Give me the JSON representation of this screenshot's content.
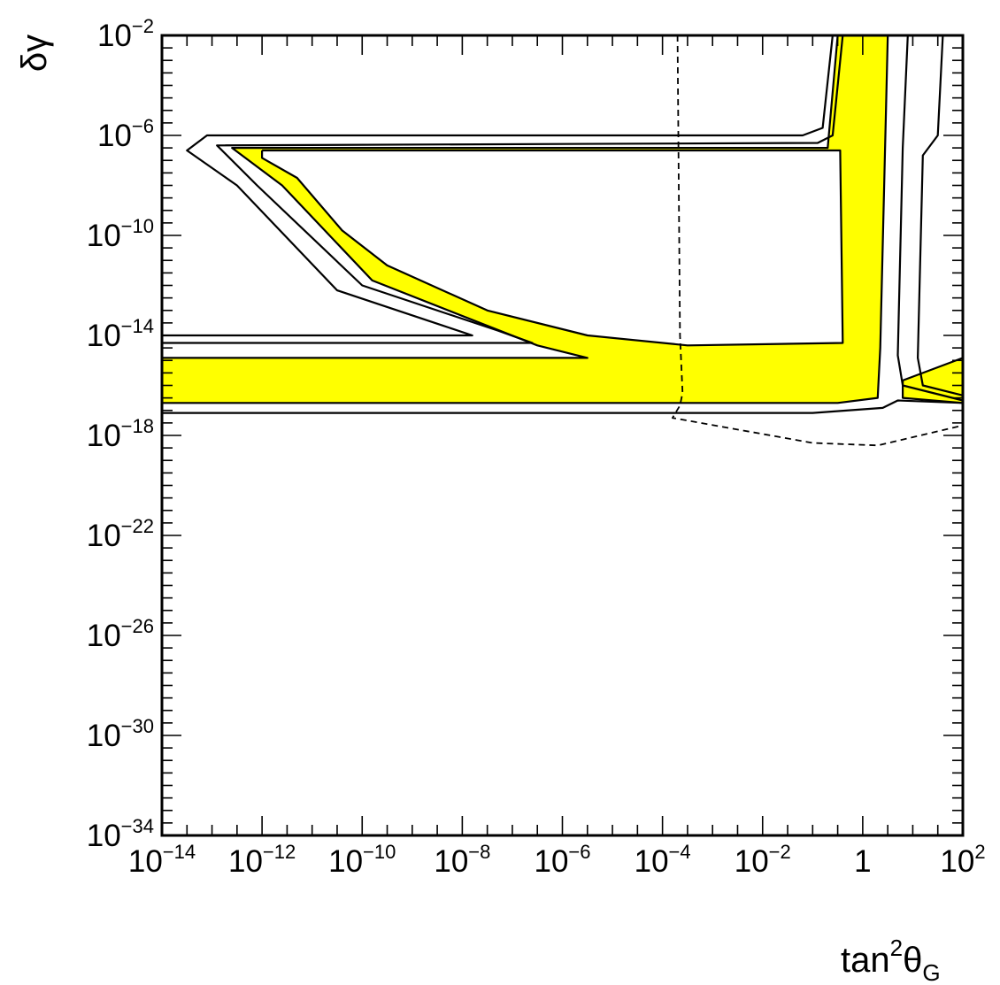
{
  "chart_data": {
    "type": "contour",
    "xlabel": {
      "base": "tan",
      "sup": "2",
      "theta": "θ",
      "sub": "G"
    },
    "ylabel": "δγ",
    "x_log10_range": [
      -14,
      2
    ],
    "y_log10_range": [
      -34,
      -2
    ],
    "x_scale": "log",
    "y_scale": "log",
    "grid": false,
    "x_ticks": [
      {
        "base": "10",
        "exp": "−14"
      },
      {
        "base": "10",
        "exp": "−12"
      },
      {
        "base": "10",
        "exp": "−10"
      },
      {
        "base": "10",
        "exp": "−8"
      },
      {
        "base": "10",
        "exp": "−6"
      },
      {
        "base": "10",
        "exp": "−4"
      },
      {
        "base": "10",
        "exp": "−2"
      },
      {
        "base": "1",
        "exp": ""
      },
      {
        "base": "10",
        "exp": "2"
      }
    ],
    "y_ticks": [
      {
        "base": "10",
        "exp": "−2"
      },
      {
        "base": "10",
        "exp": "−6"
      },
      {
        "base": "10",
        "exp": "−10"
      },
      {
        "base": "10",
        "exp": "−14"
      },
      {
        "base": "10",
        "exp": "−18"
      },
      {
        "base": "10",
        "exp": "−22"
      },
      {
        "base": "10",
        "exp": "−26"
      },
      {
        "base": "10",
        "exp": "−30"
      },
      {
        "base": "10",
        "exp": "−34"
      }
    ],
    "fill_color": "#ffff00",
    "regions": [
      {
        "id": "allowed-region-main",
        "kind": "filled",
        "points": [
          [
            -14,
            -14.9
          ],
          [
            -5.5,
            -14.9
          ],
          [
            -6.5,
            -14.4
          ],
          [
            -9.8,
            -11.8
          ],
          [
            -11.6,
            -8.0
          ],
          [
            -12.6,
            -6.5
          ],
          [
            -0.7,
            -6.5
          ],
          [
            -0.5,
            -2.0
          ],
          [
            0.5,
            -2.0
          ],
          [
            0.35,
            -14.5
          ],
          [
            0.3,
            -16.5
          ],
          [
            -0.5,
            -16.7
          ],
          [
            -14,
            -16.7
          ]
        ]
      },
      {
        "id": "allowed-region-corner",
        "kind": "filled",
        "points": [
          [
            0.8,
            -15.8
          ],
          [
            2,
            -14.9
          ],
          [
            2,
            -16.7
          ],
          [
            0.8,
            -16.5
          ]
        ]
      },
      {
        "id": "excluded-island-inner",
        "kind": "hole",
        "points": [
          [
            -12.0,
            -6.6
          ],
          [
            -0.45,
            -6.6
          ],
          [
            -0.4,
            -14.3
          ],
          [
            -3.5,
            -14.4
          ],
          [
            -5.5,
            -14.0
          ],
          [
            -7.5,
            -13.0
          ],
          [
            -9.5,
            -11.2
          ],
          [
            -10.4,
            -9.8
          ],
          [
            -11.3,
            -7.7
          ],
          [
            -12.0,
            -6.9
          ]
        ]
      }
    ],
    "contours": [
      {
        "id": "contour-inner-island",
        "style": "solid",
        "points": [
          [
            -12.0,
            -6.6
          ],
          [
            -0.45,
            -6.6
          ],
          [
            -0.4,
            -14.3
          ],
          [
            -3.5,
            -14.4
          ],
          [
            -5.5,
            -14.0
          ],
          [
            -7.5,
            -13.0
          ],
          [
            -9.5,
            -11.2
          ],
          [
            -10.4,
            -9.8
          ],
          [
            -11.3,
            -7.7
          ],
          [
            -12.0,
            -6.9
          ],
          [
            -12.0,
            -6.6
          ]
        ]
      },
      {
        "id": "contour-main-boundary",
        "style": "solid",
        "points": [
          [
            -14,
            -14.9
          ],
          [
            -5.5,
            -14.9
          ],
          [
            -6.5,
            -14.4
          ],
          [
            -9.8,
            -11.8
          ],
          [
            -11.6,
            -8.0
          ],
          [
            -12.6,
            -6.5
          ],
          [
            -0.7,
            -6.5
          ],
          [
            -0.5,
            -2.0
          ]
        ]
      },
      {
        "id": "contour-main-right-edge",
        "style": "solid",
        "points": [
          [
            0.5,
            -2.0
          ],
          [
            0.35,
            -14.5
          ],
          [
            0.3,
            -16.5
          ],
          [
            -0.5,
            -16.7
          ],
          [
            -14,
            -16.7
          ]
        ]
      },
      {
        "id": "contour-mid-outer",
        "style": "solid",
        "points": [
          [
            -14,
            -14.3
          ],
          [
            -6.6,
            -14.3
          ],
          [
            -7.3,
            -13.8
          ],
          [
            -10.0,
            -12.0
          ],
          [
            -12.1,
            -8.0
          ],
          [
            -12.9,
            -6.4
          ],
          [
            -0.9,
            -6.3
          ],
          [
            -0.6,
            -6.0
          ],
          [
            -0.4,
            -2.0
          ]
        ]
      },
      {
        "id": "contour-outer",
        "style": "solid",
        "points": [
          [
            -14,
            -14.0
          ],
          [
            -7.8,
            -14.0
          ],
          [
            -8.4,
            -13.6
          ],
          [
            -10.5,
            -12.2
          ],
          [
            -12.5,
            -8.0
          ],
          [
            -13.5,
            -6.6
          ],
          [
            -13.1,
            -6.0
          ],
          [
            -1.2,
            -6.0
          ],
          [
            -0.8,
            -5.7
          ],
          [
            -0.6,
            -2.0
          ]
        ]
      },
      {
        "id": "contour-right-1",
        "style": "solid",
        "points": [
          [
            0.9,
            -2.0
          ],
          [
            0.8,
            -6.5
          ],
          [
            0.7,
            -14.8
          ],
          [
            0.8,
            -16.0
          ],
          [
            2.0,
            -16.6
          ]
        ]
      },
      {
        "id": "contour-right-2",
        "style": "solid",
        "points": [
          [
            1.6,
            -2.0
          ],
          [
            1.5,
            -6.0
          ],
          [
            1.2,
            -6.8
          ],
          [
            1.1,
            -14.9
          ],
          [
            1.2,
            -16.0
          ],
          [
            2.0,
            -16.4
          ]
        ]
      },
      {
        "id": "contour-corner-boundary",
        "style": "solid",
        "points": [
          [
            2.0,
            -14.9
          ],
          [
            0.8,
            -15.8
          ],
          [
            0.8,
            -16.5
          ],
          [
            2.0,
            -16.7
          ]
        ]
      },
      {
        "id": "contour-lower-boundary",
        "style": "solid",
        "points": [
          [
            -14,
            -17.1
          ],
          [
            -1.0,
            -17.1
          ],
          [
            0.4,
            -16.9
          ],
          [
            0.7,
            -16.6
          ],
          [
            2.0,
            -16.7
          ]
        ]
      },
      {
        "id": "dashed-curve",
        "style": "dashed",
        "points": [
          [
            -3.7,
            -2.0
          ],
          [
            -3.65,
            -14.0
          ],
          [
            -3.6,
            -16.3
          ],
          [
            -3.65,
            -16.8
          ],
          [
            -3.8,
            -17.3
          ],
          [
            -1.0,
            -18.3
          ],
          [
            0.3,
            -18.4
          ],
          [
            2.0,
            -17.6
          ]
        ]
      }
    ]
  }
}
